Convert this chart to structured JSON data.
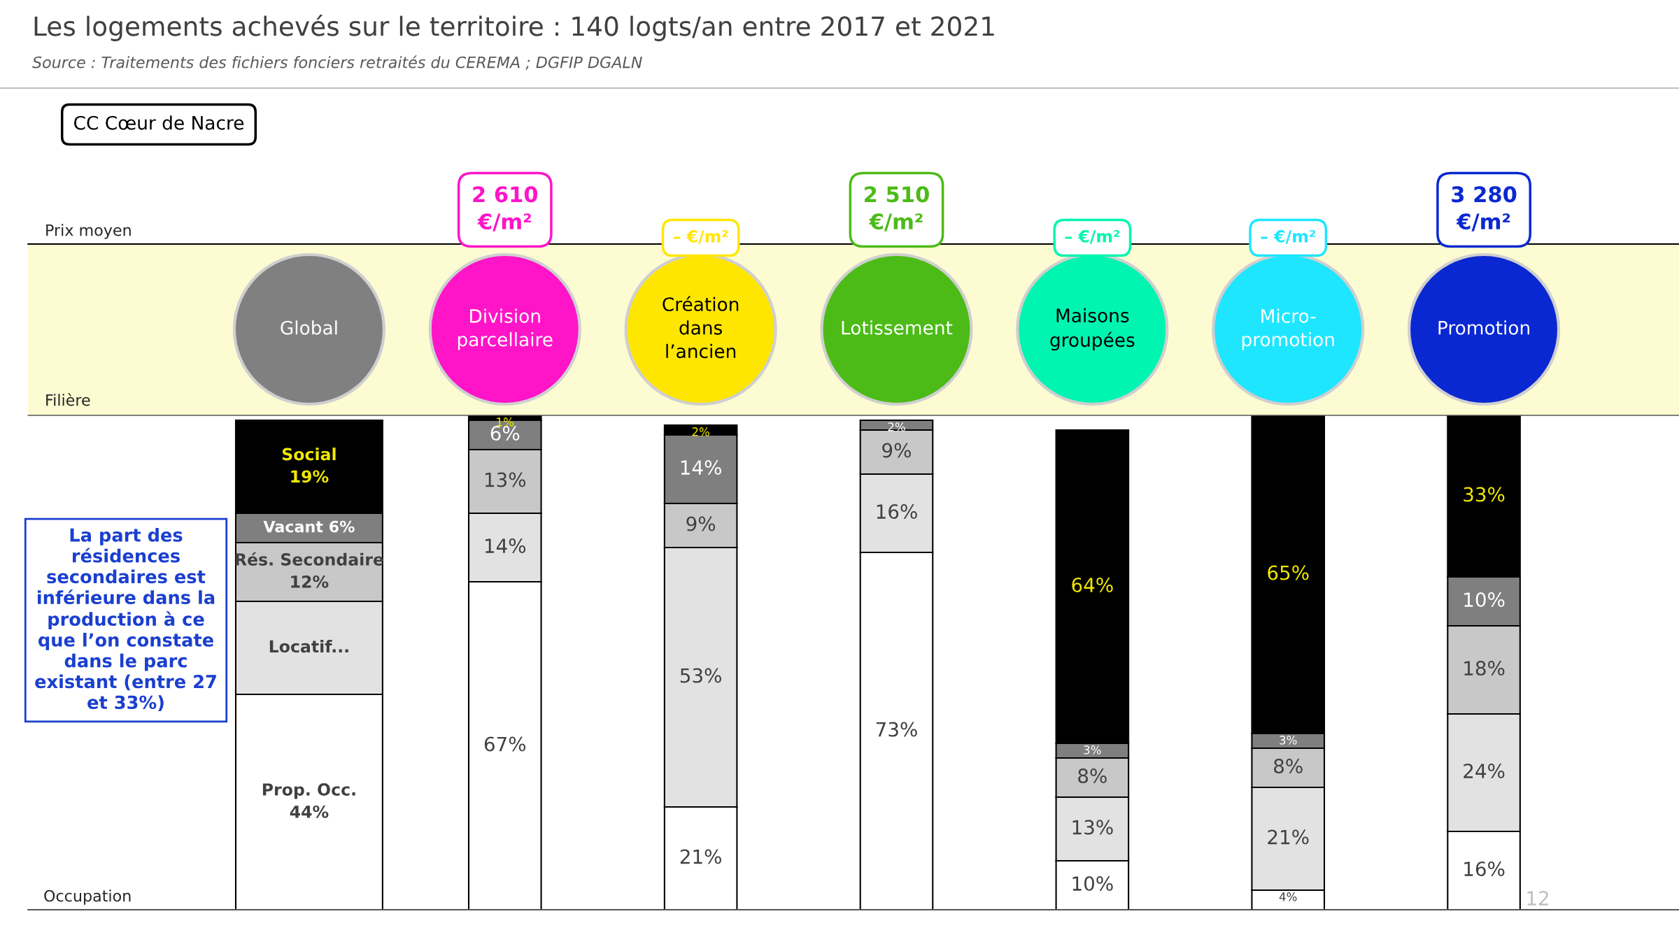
{
  "chart_data": {
    "type": "bar",
    "stacked": true,
    "title": "Les logements achevés sur le territoire : 140 logts/an entre 2017 et 2021",
    "categories": [
      "Global",
      "Division parcellaire",
      "Création dans l’ancien",
      "Lotissement",
      "Maisons groupées",
      "Micro-promotion",
      "Promotion"
    ],
    "series": [
      {
        "name": "Prop. Occ.",
        "color": "#ffffff",
        "values": [
          44,
          67,
          21,
          73,
          10,
          4,
          16
        ],
        "value_labels": [
          "44%",
          "67%",
          "21%",
          "73%",
          "10%",
          "4%",
          "16%"
        ]
      },
      {
        "name": "Locatif...",
        "color": "#e2e2e2",
        "values": [
          19,
          14,
          53,
          16,
          13,
          21,
          24
        ],
        "value_labels": [
          null,
          "14%",
          "53%",
          "16%",
          "13%",
          "21%",
          "24%"
        ]
      },
      {
        "name": "Rés. Secondaire",
        "color": "#c8c8c8",
        "values": [
          12,
          13,
          9,
          9,
          8,
          8,
          18
        ],
        "value_labels": [
          "12%",
          "13%",
          "9%",
          "9%",
          "8%",
          "8%",
          "18%"
        ]
      },
      {
        "name": "Vacant",
        "color": "#7f7f7f",
        "values": [
          6,
          6,
          14,
          2,
          3,
          3,
          10
        ],
        "value_labels": [
          "6%",
          "6%",
          "14%",
          "2%",
          "3%",
          "3%",
          "10%"
        ]
      },
      {
        "name": "Social",
        "color": "#000000",
        "values": [
          19,
          1,
          2,
          null,
          64,
          65,
          33
        ],
        "value_labels": [
          "19%",
          "1%",
          "2%",
          null,
          "64%",
          "65%",
          "33%"
        ]
      }
    ],
    "annotations": [
      "Source : Traitements des fichiers fonciers retraités du CEREMA ; DGFIP DGALN",
      "CC Cœur de Nacre",
      "Prix moyen",
      "Filière",
      "Occupation",
      "La part des\nrésidences\nsecondaires est\ninférieure dans la\nproduction à ce\nque l’on constate\ndans le parc\nexistant (entre 27\net 33%)",
      "12",
      "2 610\n€/m²",
      "– €/m²",
      "2 510\n€/m²",
      "– €/m²",
      "– €/m²",
      "3 280\n€/m²"
    ],
    "legend": false
  }
}
